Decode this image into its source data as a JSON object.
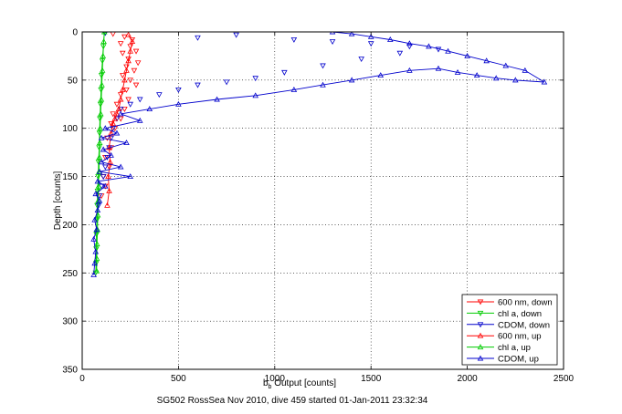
{
  "chart_data": {
    "type": "scatter",
    "xlabel": "b",
    "xlabel_subscript": "b",
    "xlabel_rest": " Output [counts]",
    "ylabel": "Depth [counts]",
    "caption": "SG502 RossSea Nov 2010, dive 459 started 01-Jan-2011 23:32:34",
    "xlim": [
      0,
      2500
    ],
    "ylim": [
      0,
      350
    ],
    "y_reversed": true,
    "grid": true,
    "x_ticks": [
      0,
      500,
      1000,
      1500,
      2000,
      2500
    ],
    "y_ticks": [
      0,
      50,
      100,
      150,
      200,
      250,
      300,
      350
    ],
    "x_tick_labels": [
      "0",
      "500",
      "1000",
      "1500",
      "2000",
      "2500"
    ],
    "y_tick_labels": [
      "0",
      "50",
      "100",
      "150",
      "200",
      "250",
      "300",
      "350"
    ],
    "legend_position": "bottom-right",
    "series": [
      {
        "name": "600 nm, down",
        "color": "#ff0000",
        "marker": "triangle-down",
        "connected": false,
        "points": [
          [
            160,
            2
          ],
          [
            220,
            5
          ],
          [
            260,
            8
          ],
          [
            200,
            12
          ],
          [
            250,
            15
          ],
          [
            280,
            20
          ],
          [
            210,
            22
          ],
          [
            240,
            28
          ],
          [
            290,
            32
          ],
          [
            230,
            36
          ],
          [
            270,
            40
          ],
          [
            210,
            45
          ],
          [
            250,
            50
          ],
          [
            280,
            55
          ],
          [
            230,
            60
          ],
          [
            200,
            65
          ],
          [
            240,
            70
          ],
          [
            180,
            75
          ],
          [
            220,
            80
          ],
          [
            160,
            85
          ],
          [
            200,
            90
          ],
          [
            150,
            95
          ],
          [
            170,
            100
          ],
          [
            130,
            110
          ],
          [
            150,
            120
          ],
          [
            120,
            130
          ],
          [
            140,
            140
          ],
          [
            110,
            150
          ],
          [
            120,
            160
          ],
          [
            100,
            170
          ]
        ]
      },
      {
        "name": "chl a, down",
        "color": "#00cc00",
        "marker": "triangle-down",
        "connected": true,
        "points": [
          [
            115,
            0
          ],
          [
            110,
            15
          ],
          [
            105,
            30
          ],
          [
            100,
            45
          ],
          [
            98,
            60
          ],
          [
            95,
            75
          ],
          [
            92,
            90
          ],
          [
            90,
            105
          ],
          [
            88,
            120
          ],
          [
            85,
            135
          ],
          [
            83,
            150
          ],
          [
            80,
            165
          ],
          [
            78,
            180
          ],
          [
            76,
            195
          ],
          [
            74,
            210
          ],
          [
            73,
            225
          ],
          [
            72,
            240
          ],
          [
            70,
            250
          ]
        ]
      },
      {
        "name": "CDOM, down",
        "color": "#0000cc",
        "marker": "triangle-down",
        "connected": false,
        "points": [
          [
            120,
            1
          ],
          [
            600,
            6
          ],
          [
            800,
            3
          ],
          [
            1100,
            8
          ],
          [
            1300,
            10
          ],
          [
            1500,
            12
          ],
          [
            1700,
            15
          ],
          [
            1850,
            18
          ],
          [
            1650,
            22
          ],
          [
            1450,
            28
          ],
          [
            1250,
            35
          ],
          [
            1050,
            42
          ],
          [
            900,
            48
          ],
          [
            750,
            52
          ],
          [
            600,
            55
          ],
          [
            500,
            60
          ],
          [
            400,
            65
          ],
          [
            300,
            70
          ],
          [
            250,
            75
          ],
          [
            200,
            80
          ],
          [
            180,
            90
          ],
          [
            160,
            100
          ],
          [
            150,
            110
          ],
          [
            140,
            120
          ],
          [
            130,
            130
          ],
          [
            120,
            140
          ],
          [
            110,
            150
          ],
          [
            100,
            160
          ],
          [
            90,
            170
          ],
          [
            85,
            180
          ]
        ]
      },
      {
        "name": "600 nm, up",
        "color": "#ff0000",
        "marker": "triangle-up",
        "connected": true,
        "points": [
          [
            130,
            180
          ],
          [
            140,
            165
          ],
          [
            135,
            150
          ],
          [
            145,
            135
          ],
          [
            140,
            120
          ],
          [
            150,
            105
          ],
          [
            160,
            95
          ],
          [
            170,
            90
          ],
          [
            180,
            85
          ],
          [
            190,
            80
          ],
          [
            200,
            70
          ],
          [
            210,
            60
          ],
          [
            220,
            50
          ],
          [
            230,
            40
          ],
          [
            240,
            30
          ],
          [
            250,
            20
          ],
          [
            260,
            10
          ],
          [
            240,
            3
          ]
        ]
      },
      {
        "name": "chl a, up",
        "color": "#00cc00",
        "marker": "triangle-up",
        "connected": true,
        "points": [
          [
            75,
            248
          ],
          [
            76,
            235
          ],
          [
            77,
            220
          ],
          [
            79,
            205
          ],
          [
            81,
            190
          ],
          [
            83,
            175
          ],
          [
            85,
            160
          ],
          [
            87,
            145
          ],
          [
            89,
            130
          ],
          [
            91,
            115
          ],
          [
            93,
            100
          ],
          [
            96,
            85
          ],
          [
            99,
            70
          ],
          [
            102,
            55
          ],
          [
            105,
            40
          ],
          [
            108,
            25
          ],
          [
            112,
            10
          ],
          [
            115,
            0
          ]
        ]
      },
      {
        "name": "CDOM, up",
        "color": "#0000cc",
        "marker": "triangle-up",
        "connected": true,
        "points": [
          [
            60,
            252
          ],
          [
            65,
            240
          ],
          [
            70,
            228
          ],
          [
            60,
            215
          ],
          [
            75,
            205
          ],
          [
            65,
            195
          ],
          [
            80,
            185
          ],
          [
            90,
            175
          ],
          [
            70,
            168
          ],
          [
            120,
            160
          ],
          [
            80,
            155
          ],
          [
            250,
            150
          ],
          [
            90,
            145
          ],
          [
            200,
            140
          ],
          [
            100,
            135
          ],
          [
            150,
            128
          ],
          [
            110,
            122
          ],
          [
            230,
            115
          ],
          [
            100,
            110
          ],
          [
            180,
            105
          ],
          [
            120,
            100
          ],
          [
            300,
            92
          ],
          [
            200,
            85
          ],
          [
            350,
            80
          ],
          [
            500,
            75
          ],
          [
            700,
            70
          ],
          [
            900,
            66
          ],
          [
            1100,
            60
          ],
          [
            1250,
            55
          ],
          [
            1400,
            50
          ],
          [
            1550,
            45
          ],
          [
            1700,
            40
          ],
          [
            1850,
            38
          ],
          [
            1950,
            42
          ],
          [
            2050,
            45
          ],
          [
            2150,
            48
          ],
          [
            2250,
            50
          ],
          [
            2400,
            52
          ],
          [
            2300,
            40
          ],
          [
            2200,
            35
          ],
          [
            2100,
            30
          ],
          [
            2000,
            25
          ],
          [
            1900,
            20
          ],
          [
            1800,
            15
          ],
          [
            1700,
            12
          ],
          [
            1600,
            8
          ],
          [
            1500,
            5
          ],
          [
            1400,
            2
          ],
          [
            1300,
            0
          ]
        ]
      }
    ]
  }
}
